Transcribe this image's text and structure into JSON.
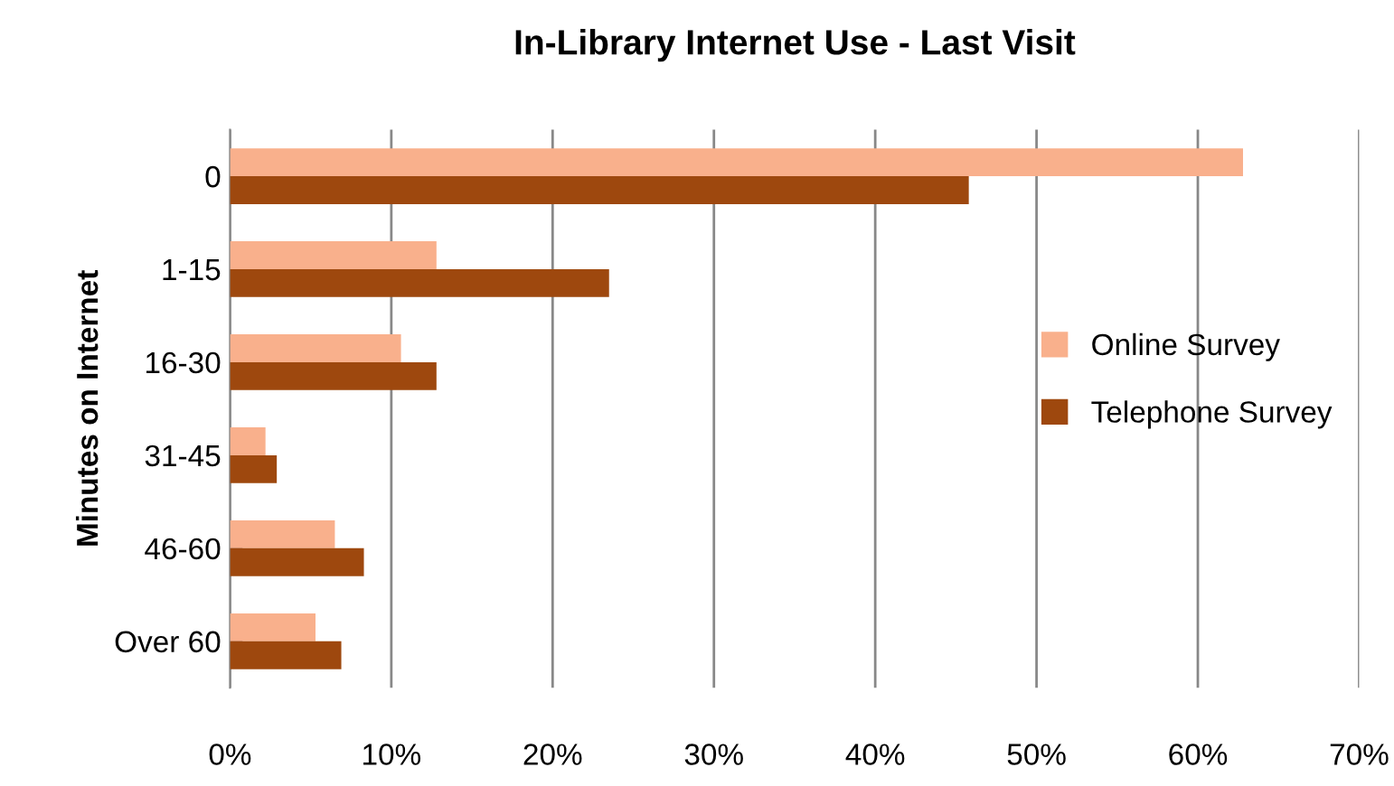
{
  "chart_data": {
    "type": "bar",
    "title": "In-Library Internet Use - Last Visit",
    "ylabel": "Minutes on Internet",
    "orientation": "horizontal",
    "categories": [
      "0",
      "1-15",
      "16-30",
      "31-45",
      "46-60",
      "Over 60"
    ],
    "series": [
      {
        "name": "Online Survey",
        "color": "#f9b08c",
        "values": [
          62.8,
          12.8,
          10.6,
          2.2,
          6.5,
          5.3
        ]
      },
      {
        "name": "Telephone Survey",
        "color": "#9e480e",
        "values": [
          45.8,
          23.5,
          12.8,
          2.9,
          8.3,
          6.9
        ]
      }
    ],
    "xlim": [
      0,
      70
    ],
    "xticks": [
      {
        "value": 0,
        "label": "0%"
      },
      {
        "value": 10,
        "label": "10%"
      },
      {
        "value": 20,
        "label": "20%"
      },
      {
        "value": 30,
        "label": "30%"
      },
      {
        "value": 40,
        "label": "40%"
      },
      {
        "value": 50,
        "label": "50%"
      },
      {
        "value": 60,
        "label": "60%"
      },
      {
        "value": 70,
        "label": "70%"
      }
    ],
    "grid": "x",
    "legend": "right"
  }
}
